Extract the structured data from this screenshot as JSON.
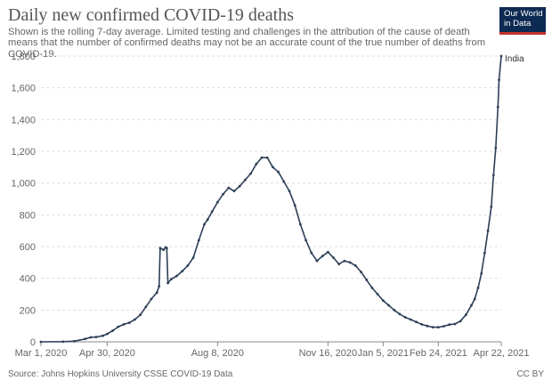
{
  "header": {
    "title": "Daily new confirmed COVID-19 deaths",
    "subtitle": "Shown is the rolling 7-day average. Limited testing and challenges in the attribution of the cause of death means that the number of confirmed deaths may not be an accurate count of the true number of deaths from COVID-19."
  },
  "logo": {
    "line1": "Our World",
    "line2": "in Data",
    "bg_color": "#0d2a52",
    "accent_color": "#c4332d"
  },
  "footer": {
    "source": "Source: Johns Hopkins University CSSE COVID-19 Data",
    "license": "CC BY"
  },
  "chart_data": {
    "type": "line",
    "title": "Daily new confirmed COVID-19 deaths",
    "xlabel": "",
    "ylabel": "",
    "x_ticks": [
      {
        "label": "Mar 1, 2020",
        "day": 0
      },
      {
        "label": "Apr 30, 2020",
        "day": 60
      },
      {
        "label": "Aug 8, 2020",
        "day": 160
      },
      {
        "label": "Nov 16, 2020",
        "day": 260
      },
      {
        "label": "Jan 5, 2021",
        "day": 310
      },
      {
        "label": "Feb 24, 2021",
        "day": 360
      },
      {
        "label": "Apr 22, 2021",
        "day": 417
      }
    ],
    "y_ticks": [
      "0",
      "200",
      "400",
      "600",
      "800",
      "1,000",
      "1,200",
      "1,400",
      "1,600",
      "1,800"
    ],
    "ylim": [
      0,
      1800
    ],
    "xlim": [
      "Mar 1, 2020",
      "Apr 22, 2021"
    ],
    "grid": "horizontal dashed",
    "color": "#2d3f57",
    "series": [
      {
        "name": "India",
        "points": [
          [
            "Mar 1, 2020",
            0
          ],
          [
            "Mar 21, 2020",
            1
          ],
          [
            "Mar 31, 2020",
            4
          ],
          [
            "Apr 10, 2020",
            18
          ],
          [
            "Apr 15, 2020",
            28
          ],
          [
            "Apr 20, 2020",
            30
          ],
          [
            "Apr 26, 2020",
            38
          ],
          [
            "Apr 30, 2020",
            50
          ],
          [
            "May 5, 2020",
            70
          ],
          [
            "May 10, 2020",
            95
          ],
          [
            "May 15, 2020",
            110
          ],
          [
            "May 20, 2020",
            120
          ],
          [
            "May 25, 2020",
            140
          ],
          [
            "May 30, 2020",
            170
          ],
          [
            "Jun 4, 2020",
            220
          ],
          [
            "Jun 9, 2020",
            270
          ],
          [
            "Jun 14, 2020",
            310
          ],
          [
            "Jun 16, 2020",
            350
          ],
          [
            "Jun 17, 2020",
            590
          ],
          [
            "Jun 20, 2020",
            580
          ],
          [
            "Jun 22, 2020",
            595
          ],
          [
            "Jun 23, 2020",
            590
          ],
          [
            "Jun 24, 2020",
            370
          ],
          [
            "Jun 27, 2020",
            395
          ],
          [
            "Jul 2, 2020",
            415
          ],
          [
            "Jul 7, 2020",
            445
          ],
          [
            "Jul 12, 2020",
            480
          ],
          [
            "Jul 17, 2020",
            530
          ],
          [
            "Jul 22, 2020",
            640
          ],
          [
            "Jul 27, 2020",
            740
          ],
          [
            "Jul 30, 2020",
            770
          ],
          [
            "Aug 3, 2020",
            820
          ],
          [
            "Aug 8, 2020",
            880
          ],
          [
            "Aug 13, 2020",
            930
          ],
          [
            "Aug 18, 2020",
            970
          ],
          [
            "Aug 23, 2020",
            950
          ],
          [
            "Aug 28, 2020",
            980
          ],
          [
            "Sep 2, 2020",
            1020
          ],
          [
            "Sep 7, 2020",
            1060
          ],
          [
            "Sep 12, 2020",
            1120
          ],
          [
            "Sep 17, 2020",
            1160
          ],
          [
            "Sep 22, 2020",
            1160
          ],
          [
            "Sep 27, 2020",
            1100
          ],
          [
            "Oct 2, 2020",
            1070
          ],
          [
            "Oct 7, 2020",
            1010
          ],
          [
            "Oct 12, 2020",
            950
          ],
          [
            "Oct 17, 2020",
            860
          ],
          [
            "Oct 22, 2020",
            740
          ],
          [
            "Oct 27, 2020",
            640
          ],
          [
            "Nov 1, 2020",
            560
          ],
          [
            "Nov 6, 2020",
            510
          ],
          [
            "Nov 11, 2020",
            540
          ],
          [
            "Nov 16, 2020",
            565
          ],
          [
            "Nov 21, 2020",
            530
          ],
          [
            "Nov 26, 2020",
            490
          ],
          [
            "Dec 1, 2020",
            510
          ],
          [
            "Dec 6, 2020",
            500
          ],
          [
            "Dec 11, 2020",
            480
          ],
          [
            "Dec 16, 2020",
            440
          ],
          [
            "Dec 21, 2020",
            390
          ],
          [
            "Dec 26, 2020",
            340
          ],
          [
            "Dec 31, 2020",
            300
          ],
          [
            "Jan 5, 2021",
            260
          ],
          [
            "Jan 10, 2021",
            230
          ],
          [
            "Jan 15, 2021",
            200
          ],
          [
            "Jan 20, 2021",
            175
          ],
          [
            "Jan 25, 2021",
            155
          ],
          [
            "Jan 30, 2021",
            140
          ],
          [
            "Feb 4, 2021",
            125
          ],
          [
            "Feb 9, 2021",
            110
          ],
          [
            "Feb 14, 2021",
            100
          ],
          [
            "Feb 19, 2021",
            92
          ],
          [
            "Feb 24, 2021",
            92
          ],
          [
            "Mar 1, 2021",
            98
          ],
          [
            "Mar 6, 2021",
            108
          ],
          [
            "Mar 11, 2021",
            112
          ],
          [
            "Mar 16, 2021",
            130
          ],
          [
            "Mar 21, 2021",
            170
          ],
          [
            "Mar 26, 2021",
            230
          ],
          [
            "Mar 29, 2021",
            270
          ],
          [
            "Apr 1, 2021",
            340
          ],
          [
            "Apr 4, 2021",
            430
          ],
          [
            "Apr 7, 2021",
            560
          ],
          [
            "Apr 10, 2021",
            700
          ],
          [
            "Apr 13, 2021",
            850
          ],
          [
            "Apr 15, 2021",
            1050
          ],
          [
            "Apr 17, 2021",
            1220
          ],
          [
            "Apr 19, 2021",
            1480
          ],
          [
            "Apr 20, 2021",
            1650
          ],
          [
            "Apr 22, 2021",
            1800
          ]
        ]
      }
    ]
  }
}
